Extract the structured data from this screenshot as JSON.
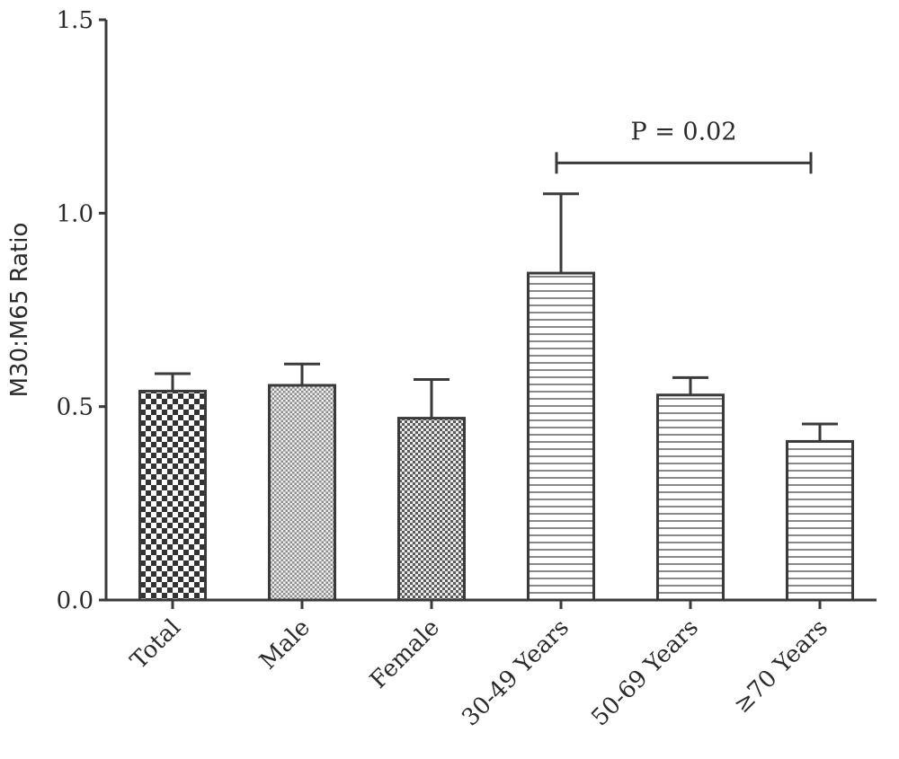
{
  "chart_data": {
    "type": "bar",
    "title": "",
    "xlabel": "",
    "ylabel": "M30:M65 Ratio",
    "ylim": [
      0,
      1.5
    ],
    "yticks": [
      "0.0",
      "0.5",
      "1.0",
      "1.5"
    ],
    "grid": false,
    "categories": [
      "Total",
      "Male",
      "Female",
      "30-49 Years",
      "50-69 Years",
      "≥70 Years"
    ],
    "values": [
      0.54,
      0.555,
      0.47,
      0.845,
      0.53,
      0.41
    ],
    "error_upper": [
      0.585,
      0.61,
      0.57,
      1.05,
      0.575,
      0.455
    ],
    "fill_patterns": [
      "checker-large",
      "checker-fine",
      "checker-medium",
      "horizontal-lines",
      "horizontal-lines",
      "horizontal-lines"
    ],
    "annotations": [
      {
        "text": "P = 0.02",
        "from_category": "30-49 Years",
        "to_category": "≥70 Years",
        "y": 1.13
      }
    ]
  }
}
